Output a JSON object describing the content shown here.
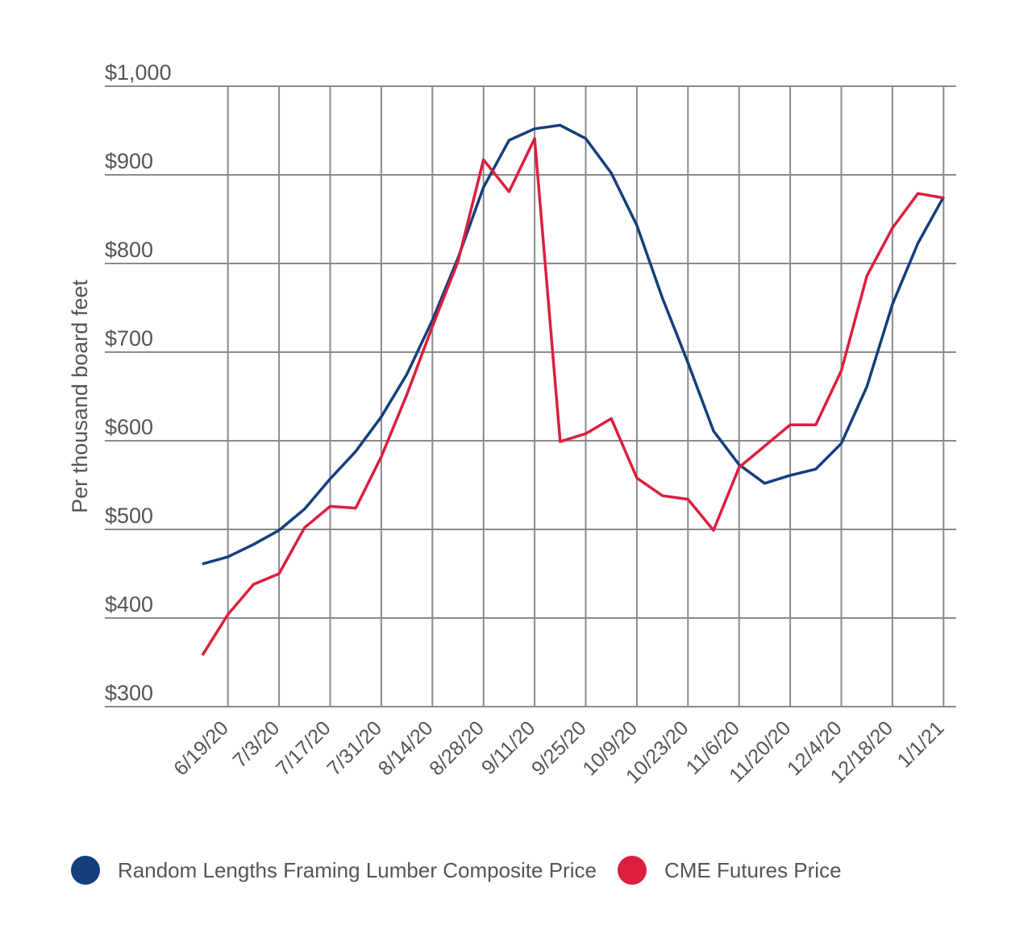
{
  "chart_data": {
    "type": "line",
    "title": "",
    "xlabel": "",
    "ylabel": "Per thousand board feet",
    "ylim": [
      300,
      1000
    ],
    "yticks": [
      "$300",
      "$400",
      "$500",
      "$600",
      "$700",
      "$800",
      "$900",
      "$1,000"
    ],
    "ytick_values": [
      300,
      400,
      500,
      600,
      700,
      800,
      900,
      1000
    ],
    "xtick_labels": [
      "6/19/20",
      "7/3/20",
      "7/17/20",
      "7/31/20",
      "8/14/20",
      "8/28/20",
      "9/11/20",
      "9/25/20",
      "10/9/20",
      "10/23/20",
      "11/6/20",
      "11/20/20",
      "12/4/20",
      "12/18/20",
      "1/1/21"
    ],
    "x": [
      "6/12/20",
      "6/19/20",
      "6/26/20",
      "7/3/20",
      "7/10/20",
      "7/17/20",
      "7/24/20",
      "7/31/20",
      "8/7/20",
      "8/14/20",
      "8/21/20",
      "8/28/20",
      "9/4/20",
      "9/11/20",
      "9/18/20",
      "9/25/20",
      "10/2/20",
      "10/9/20",
      "10/16/20",
      "10/23/20",
      "10/30/20",
      "11/6/20",
      "11/13/20",
      "11/20/20",
      "11/27/20",
      "12/4/20",
      "12/11/20",
      "12/18/20",
      "12/25/20",
      "1/1/21"
    ],
    "grid": true,
    "legend_placement": "bottom",
    "series": [
      {
        "name": "Random Lengths Framing Lumber Composite Price",
        "color": "#143f7c",
        "values": [
          461,
          469,
          483,
          499,
          523,
          557,
          588,
          627,
          675,
          736,
          806,
          886,
          939,
          952,
          956,
          941,
          902,
          843,
          761,
          688,
          611,
          573,
          552,
          561,
          568,
          597,
          661,
          754,
          823,
          875
        ]
      },
      {
        "name": "CME Futures Price",
        "color": "#dc1f3e",
        "values": [
          358,
          404,
          438,
          450,
          502,
          526,
          524,
          582,
          652,
          729,
          802,
          917,
          881,
          941,
          599,
          608,
          625,
          558,
          538,
          534,
          499,
          570,
          594,
          618,
          618,
          679,
          786,
          840,
          879,
          874
        ]
      }
    ]
  }
}
